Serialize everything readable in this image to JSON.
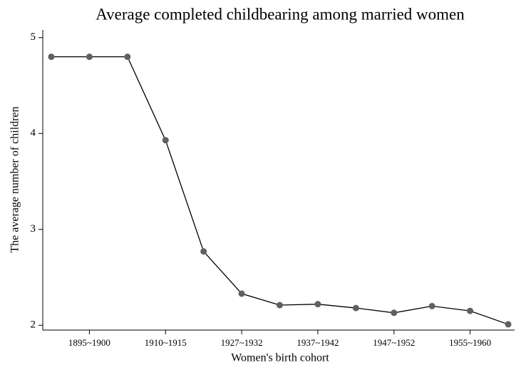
{
  "chart_data": {
    "type": "line",
    "title": "Average completed childbearing among married women",
    "x_label": "Women's birth cohort",
    "y_label": "The average number of children",
    "categories": [
      null,
      "1895~1900",
      null,
      "1910~1915",
      null,
      "1927~1932",
      null,
      "1937~1942",
      null,
      "1947~1952",
      null,
      "1955~1960",
      null
    ],
    "series": [
      {
        "name": "Average number of children",
        "color": "#000000",
        "marker_color": "#606060",
        "values": [
          4.8,
          4.8,
          4.8,
          3.93,
          2.77,
          2.33,
          2.21,
          2.22,
          2.18,
          2.13,
          2.2,
          2.15,
          2.01
        ]
      }
    ],
    "ylim": [
      1.95,
      5.08
    ],
    "yticks": [
      2,
      3,
      4,
      5
    ],
    "grid": false
  }
}
